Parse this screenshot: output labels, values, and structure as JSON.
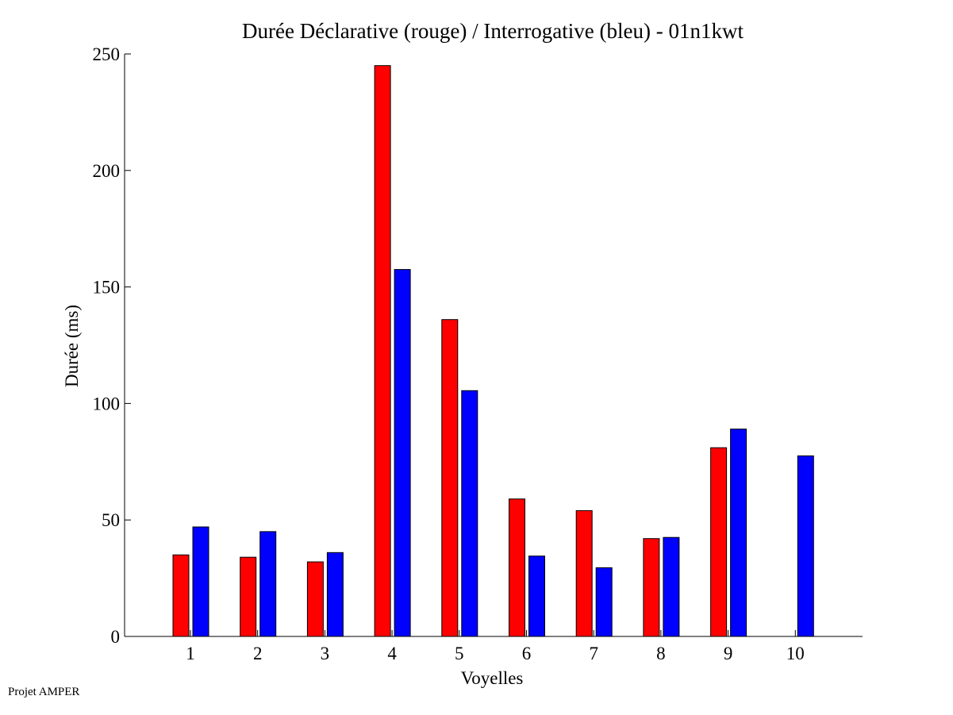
{
  "footer": {
    "note": "Projet AMPER"
  },
  "chart_data": {
    "type": "bar",
    "title": "Durée Déclarative (rouge) / Interrogative (bleu) - 01n1kwt",
    "xlabel": "Voyelles",
    "ylabel": "Durée (ms)",
    "categories": [
      "1",
      "2",
      "3",
      "4",
      "5",
      "6",
      "7",
      "8",
      "9",
      "10"
    ],
    "ylim": [
      0,
      250
    ],
    "yticks": [
      0,
      50,
      100,
      150,
      200,
      250
    ],
    "grid": false,
    "legend": "none",
    "series": [
      {
        "color": "#ff0000",
        "values": [
          35,
          34,
          32,
          245,
          136,
          59,
          54,
          42,
          81,
          null
        ]
      },
      {
        "color": "#0000ff",
        "values": [
          47,
          45,
          36,
          157.5,
          105.5,
          34.5,
          29.5,
          42.5,
          89,
          77.5
        ]
      }
    ]
  }
}
